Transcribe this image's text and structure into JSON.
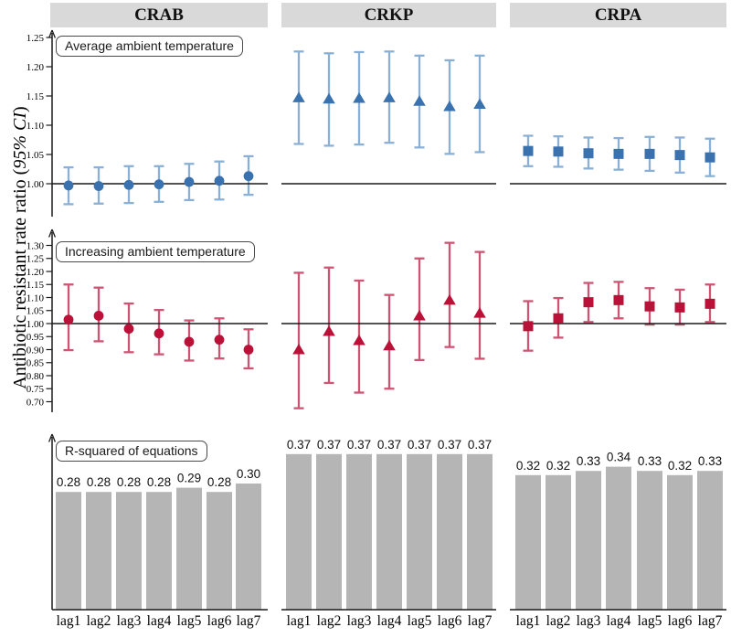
{
  "figure": {
    "y_label_prefix": "Antibiotic resistant rate ratio (",
    "y_label_italic": "95% CI",
    "y_label_suffix": ")",
    "ylabel": "Antibiotic resistant rate ratio (95% CI)"
  },
  "columns": [
    {
      "label": "CRAB",
      "marker": "circle"
    },
    {
      "label": "CRKP",
      "marker": "triangle"
    },
    {
      "label": "CRPA",
      "marker": "square"
    }
  ],
  "categories": [
    "lag1",
    "lag2",
    "lag3",
    "lag4",
    "lag5",
    "lag6",
    "lag7"
  ],
  "colors": {
    "header_bg": "#d9d9d9",
    "blue_marker": "#3a72b0",
    "blue_ci": "#8ab0d6",
    "red_marker": "#bb1038",
    "red_ci": "#cd5472",
    "bar_fill": "#b5b5b5",
    "axis": "#1a1a1a"
  },
  "chart_data": [
    {
      "type": "errorbar",
      "title": "Average ambient temperature",
      "ylabel": "Antibiotic resistant rate ratio (95% CI)",
      "ylim": [
        0.96,
        1.27
      ],
      "yticks": [
        1.0,
        1.05,
        1.1,
        1.15,
        1.2,
        1.25
      ],
      "reference_line": 1.0,
      "marker_color": "#3a72b0",
      "ci_color": "#8ab0d6",
      "categories": [
        "lag1",
        "lag2",
        "lag3",
        "lag4",
        "lag5",
        "lag6",
        "lag7"
      ],
      "series": [
        {
          "name": "CRAB",
          "marker": "circle",
          "values": [
            0.997,
            0.996,
            0.998,
            0.999,
            1.003,
            1.005,
            1.013
          ],
          "ci_low": [
            0.965,
            0.966,
            0.967,
            0.969,
            0.972,
            0.973,
            0.981
          ],
          "ci_high": [
            1.028,
            1.028,
            1.03,
            1.03,
            1.034,
            1.038,
            1.047
          ]
        },
        {
          "name": "CRKP",
          "marker": "triangle",
          "values": [
            1.147,
            1.145,
            1.146,
            1.147,
            1.141,
            1.132,
            1.136
          ],
          "ci_low": [
            1.068,
            1.065,
            1.067,
            1.07,
            1.062,
            1.051,
            1.054
          ],
          "ci_high": [
            1.226,
            1.223,
            1.225,
            1.226,
            1.219,
            1.211,
            1.219
          ]
        },
        {
          "name": "CRPA",
          "marker": "square",
          "values": [
            1.056,
            1.055,
            1.052,
            1.051,
            1.051,
            1.049,
            1.045
          ],
          "ci_low": [
            1.03,
            1.029,
            1.026,
            1.024,
            1.022,
            1.019,
            1.013
          ],
          "ci_high": [
            1.082,
            1.081,
            1.079,
            1.078,
            1.08,
            1.079,
            1.077
          ]
        }
      ]
    },
    {
      "type": "errorbar",
      "title": "Increasing ambient temperature",
      "ylabel": "Antibiotic resistant rate ratio (95% CI)",
      "ylim": [
        0.665,
        1.325
      ],
      "yticks": [
        0.7,
        0.75,
        0.8,
        0.85,
        0.9,
        0.95,
        1.0,
        1.05,
        1.1,
        1.15,
        1.2,
        1.25,
        1.3
      ],
      "reference_line": 1.0,
      "marker_color": "#bb1038",
      "ci_color": "#cd5472",
      "categories": [
        "lag1",
        "lag2",
        "lag3",
        "lag4",
        "lag5",
        "lag6",
        "lag7"
      ],
      "series": [
        {
          "name": "CRAB",
          "marker": "circle",
          "values": [
            1.015,
            1.03,
            0.98,
            0.962,
            0.93,
            0.938,
            0.9
          ],
          "ci_low": [
            0.898,
            0.932,
            0.89,
            0.882,
            0.858,
            0.866,
            0.828
          ],
          "ci_high": [
            1.15,
            1.138,
            1.077,
            1.052,
            1.012,
            1.02,
            0.978
          ]
        },
        {
          "name": "CRKP",
          "marker": "triangle",
          "values": [
            0.9,
            0.97,
            0.935,
            0.915,
            1.03,
            1.09,
            1.04
          ],
          "ci_low": [
            0.675,
            0.772,
            0.735,
            0.75,
            0.86,
            0.91,
            0.865
          ],
          "ci_high": [
            1.195,
            1.215,
            1.165,
            1.11,
            1.25,
            1.31,
            1.275
          ]
        },
        {
          "name": "CRPA",
          "marker": "square",
          "values": [
            0.99,
            1.02,
            1.082,
            1.09,
            1.066,
            1.062,
            1.076
          ],
          "ci_low": [
            0.896,
            0.946,
            1.006,
            1.02,
            0.996,
            0.996,
            1.006
          ],
          "ci_high": [
            1.086,
            1.098,
            1.156,
            1.16,
            1.136,
            1.13,
            1.15
          ]
        }
      ]
    },
    {
      "type": "bar",
      "title": "R-squared of equations",
      "categories": [
        "lag1",
        "lag2",
        "lag3",
        "lag4",
        "lag5",
        "lag6",
        "lag7"
      ],
      "bar_color": "#b5b5b5",
      "ylim": [
        0,
        0.42
      ],
      "series": [
        {
          "name": "CRAB",
          "values": [
            0.28,
            0.28,
            0.28,
            0.28,
            0.29,
            0.28,
            0.3
          ]
        },
        {
          "name": "CRKP",
          "values": [
            0.37,
            0.37,
            0.37,
            0.37,
            0.37,
            0.37,
            0.37
          ]
        },
        {
          "name": "CRPA",
          "values": [
            0.32,
            0.32,
            0.33,
            0.34,
            0.33,
            0.32,
            0.33
          ]
        }
      ]
    }
  ]
}
